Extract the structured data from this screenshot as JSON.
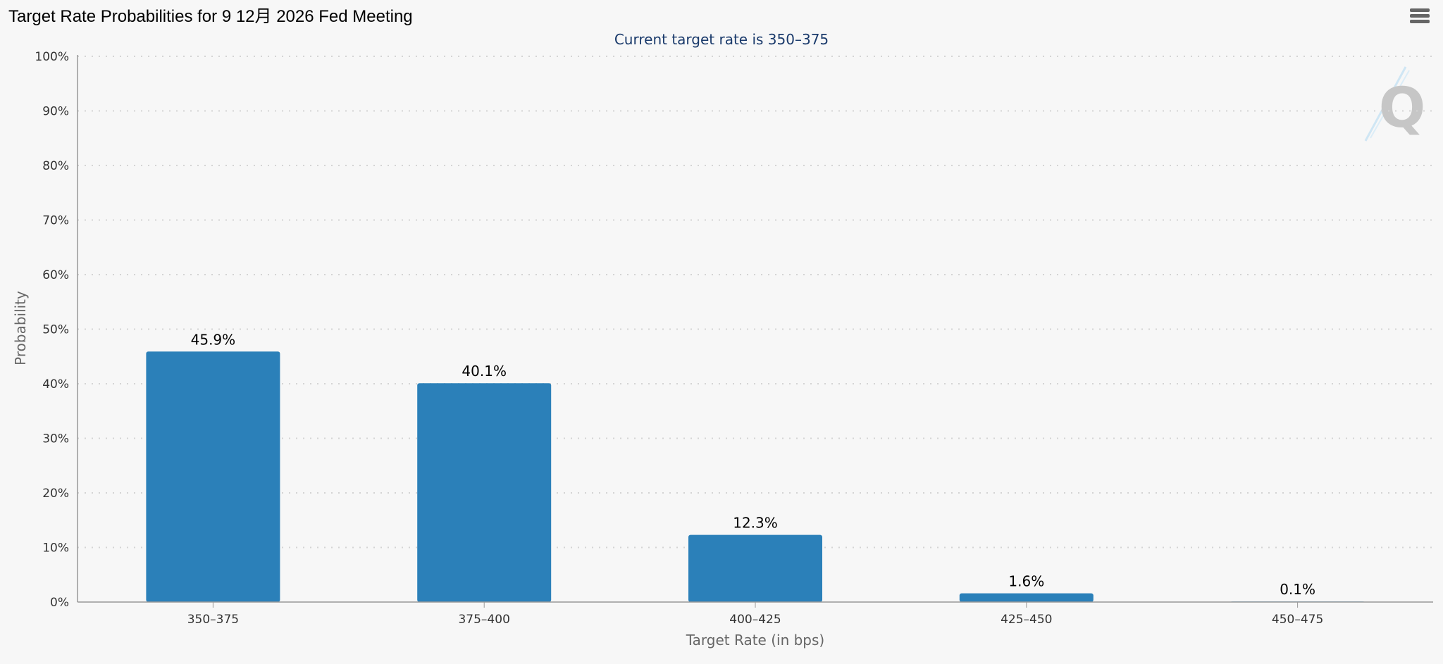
{
  "title": "Target Rate Probabilities for 9 12月 2026 Fed Meeting",
  "menu": {
    "icon": "hamburger-menu-icon"
  },
  "colors": {
    "bar": "#2b80b9",
    "subtitle": "#1a3a6b",
    "grid": "#d4d4d4",
    "axis": "#999999"
  },
  "watermark": {
    "text": "Q"
  },
  "chart_data": {
    "type": "bar",
    "subtitle": "Current target rate is 350–375",
    "xlabel": "Target Rate (in bps)",
    "ylabel": "Probability",
    "categories": [
      "350–375",
      "375–400",
      "400–425",
      "425–450",
      "450–475"
    ],
    "values": [
      45.9,
      40.1,
      12.3,
      1.6,
      0.1
    ],
    "data_labels": [
      "45.9%",
      "40.1%",
      "12.3%",
      "1.6%",
      "0.1%"
    ],
    "ylim": [
      0,
      100
    ],
    "yticks": [
      "0%",
      "10%",
      "20%",
      "30%",
      "40%",
      "50%",
      "60%",
      "70%",
      "80%",
      "90%",
      "100%"
    ],
    "grid": true,
    "legend": "none"
  }
}
